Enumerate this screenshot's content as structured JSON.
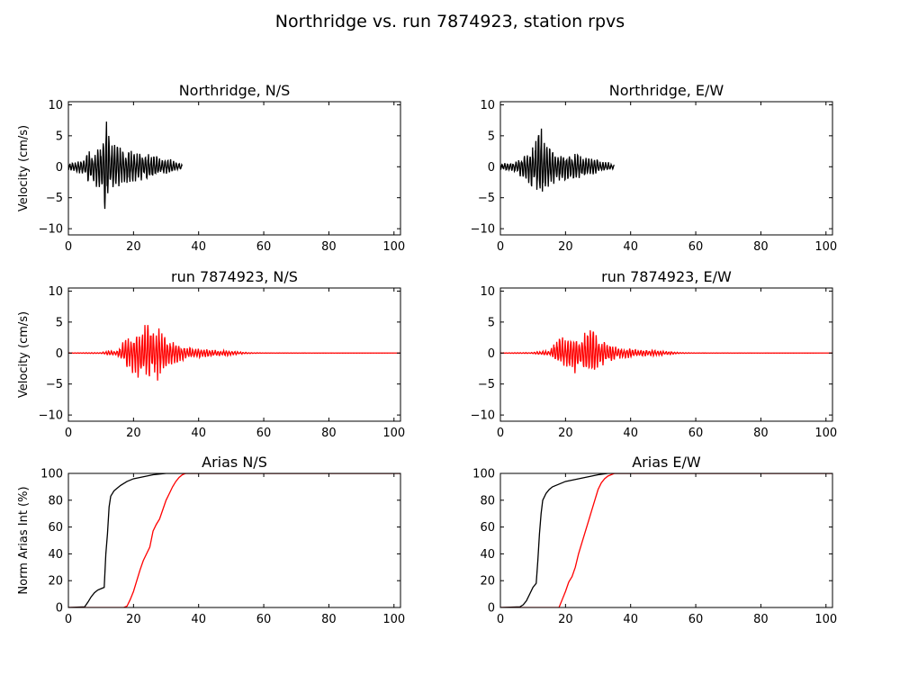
{
  "figure": {
    "title": "Northridge vs. run 7874923, station rpvs"
  },
  "colors": {
    "recorded": "#000000",
    "simulated": "#ff0000",
    "axis": "#000000"
  },
  "chart_data": [
    {
      "id": "vel-ns-recorded",
      "type": "line",
      "title": "Northridge, N/S",
      "xlabel": "",
      "ylabel": "Velocity (cm/s)",
      "xlim": [
        0,
        102
      ],
      "ylim": [
        -11,
        10.5
      ],
      "xticks": [
        "0",
        "20",
        "40",
        "60",
        "80",
        "100"
      ],
      "yticks": [
        "10",
        "5",
        "0",
        "−5",
        "−10"
      ],
      "series": [
        {
          "color": "#000000",
          "x": [],
          "y": [],
          "envelope": [
            [
              0,
              0.6
            ],
            [
              5,
              1.2
            ],
            [
              6,
              3.5
            ],
            [
              8,
              2.5
            ],
            [
              9,
              3.2
            ],
            [
              10,
              4.0
            ],
            [
              11,
              9.8
            ],
            [
              12,
              8.5
            ],
            [
              13,
              5.4
            ],
            [
              15,
              4.0
            ],
            [
              17,
              3.4
            ],
            [
              19,
              3.0
            ],
            [
              21,
              2.8
            ],
            [
              24,
              2.5
            ],
            [
              27,
              2.0
            ],
            [
              30,
              1.5
            ],
            [
              33,
              1.0
            ],
            [
              35,
              0.4
            ]
          ],
          "envelope_neg": [
            [
              0,
              -0.6
            ],
            [
              5,
              -1.5
            ],
            [
              6,
              -3.0
            ],
            [
              8,
              -3.2
            ],
            [
              10,
              -4.5
            ],
            [
              11,
              -7.5
            ],
            [
              12,
              -8.0
            ],
            [
              13,
              -4.6
            ],
            [
              15,
              -4.0
            ],
            [
              17,
              -3.2
            ],
            [
              19,
              -3.0
            ],
            [
              21,
              -2.6
            ],
            [
              24,
              -2.5
            ],
            [
              27,
              -1.8
            ],
            [
              30,
              -1.3
            ],
            [
              33,
              -0.8
            ],
            [
              35,
              -0.3
            ]
          ],
          "t_start": 0,
          "t_end": 35,
          "seed": 11
        }
      ]
    },
    {
      "id": "vel-ew-recorded",
      "type": "line",
      "title": "Northridge, E/W",
      "xlabel": "",
      "ylabel": "",
      "xlim": [
        0,
        102
      ],
      "ylim": [
        -11,
        10.5
      ],
      "xticks": [
        "0",
        "20",
        "40",
        "60",
        "80",
        "100"
      ],
      "yticks": [
        "10",
        "5",
        "0",
        "−5",
        "−10"
      ],
      "series": [
        {
          "color": "#000000",
          "x": [],
          "y": [],
          "envelope": [
            [
              0,
              0.5
            ],
            [
              5,
              1.0
            ],
            [
              7,
              2.0
            ],
            [
              9,
              2.5
            ],
            [
              11,
              5.5
            ],
            [
              12,
              9.0
            ],
            [
              13,
              5.5
            ],
            [
              15,
              4.0
            ],
            [
              17,
              3.5
            ],
            [
              20,
              2.5
            ],
            [
              23,
              2.2
            ],
            [
              26,
              1.8
            ],
            [
              29,
              1.5
            ],
            [
              32,
              1.0
            ],
            [
              35,
              0.4
            ]
          ],
          "envelope_neg": [
            [
              0,
              -0.5
            ],
            [
              5,
              -1.0
            ],
            [
              7,
              -2.2
            ],
            [
              9,
              -3.0
            ],
            [
              11,
              -4.5
            ],
            [
              12,
              -5.0
            ],
            [
              13,
              -5.2
            ],
            [
              15,
              -4.0
            ],
            [
              17,
              -3.2
            ],
            [
              20,
              -2.5
            ],
            [
              23,
              -2.2
            ],
            [
              26,
              -1.8
            ],
            [
              29,
              -1.3
            ],
            [
              32,
              -0.8
            ],
            [
              35,
              -0.3
            ]
          ],
          "t_start": 0,
          "t_end": 35,
          "seed": 23
        }
      ]
    },
    {
      "id": "vel-ns-simulated",
      "type": "line",
      "title": "run 7874923, N/S",
      "xlabel": "",
      "ylabel": "Velocity (cm/s)",
      "xlim": [
        0,
        102
      ],
      "ylim": [
        -11,
        10.5
      ],
      "xticks": [
        "0",
        "20",
        "40",
        "60",
        "80",
        "100"
      ],
      "yticks": [
        "10",
        "5",
        "0",
        "−5",
        "−10"
      ],
      "series": [
        {
          "color": "#ff0000",
          "x": [],
          "y": [],
          "envelope": [
            [
              0,
              0.02
            ],
            [
              10,
              0.1
            ],
            [
              12,
              0.4
            ],
            [
              15,
              0.5
            ],
            [
              18,
              3.2
            ],
            [
              20,
              2.5
            ],
            [
              22,
              4.0
            ],
            [
              24,
              5.7
            ],
            [
              26,
              4.5
            ],
            [
              28,
              4.8
            ],
            [
              30,
              3.0
            ],
            [
              32,
              2.0
            ],
            [
              34,
              1.5
            ],
            [
              36,
              1.0
            ],
            [
              40,
              0.8
            ],
            [
              44,
              0.6
            ],
            [
              48,
              0.5
            ],
            [
              52,
              0.3
            ],
            [
              55,
              0.1
            ],
            [
              60,
              0.02
            ],
            [
              102,
              0.0
            ]
          ],
          "envelope_neg": [
            [
              0,
              -0.02
            ],
            [
              10,
              -0.1
            ],
            [
              12,
              -0.3
            ],
            [
              15,
              -0.4
            ],
            [
              18,
              -2.5
            ],
            [
              20,
              -4.0
            ],
            [
              22,
              -4.5
            ],
            [
              24,
              -4.3
            ],
            [
              26,
              -4.0
            ],
            [
              28,
              -5.0
            ],
            [
              30,
              -3.0
            ],
            [
              32,
              -2.0
            ],
            [
              34,
              -1.5
            ],
            [
              36,
              -1.0
            ],
            [
              40,
              -0.8
            ],
            [
              44,
              -0.6
            ],
            [
              48,
              -0.5
            ],
            [
              52,
              -0.3
            ],
            [
              55,
              -0.1
            ],
            [
              60,
              -0.02
            ],
            [
              102,
              0.0
            ]
          ],
          "t_start": 0,
          "t_end": 102,
          "seed": 37
        }
      ]
    },
    {
      "id": "vel-ew-simulated",
      "type": "line",
      "title": "run 7874923, E/W",
      "xlabel": "",
      "ylabel": "",
      "xlim": [
        0,
        102
      ],
      "ylim": [
        -11,
        10.5
      ],
      "xticks": [
        "0",
        "20",
        "40",
        "60",
        "80",
        "100"
      ],
      "yticks": [
        "10",
        "5",
        "0",
        "−5",
        "−10"
      ],
      "series": [
        {
          "color": "#ff0000",
          "x": [],
          "y": [],
          "envelope": [
            [
              0,
              0.02
            ],
            [
              10,
              0.1
            ],
            [
              12,
              0.3
            ],
            [
              15,
              0.4
            ],
            [
              18,
              3.3
            ],
            [
              20,
              2.5
            ],
            [
              22,
              3.0
            ],
            [
              24,
              3.0
            ],
            [
              26,
              3.5
            ],
            [
              28,
              4.7
            ],
            [
              30,
              2.5
            ],
            [
              32,
              2.0
            ],
            [
              34,
              1.5
            ],
            [
              36,
              1.0
            ],
            [
              40,
              0.7
            ],
            [
              44,
              0.6
            ],
            [
              48,
              0.5
            ],
            [
              52,
              0.3
            ],
            [
              55,
              0.1
            ],
            [
              60,
              0.02
            ],
            [
              102,
              0.0
            ]
          ],
          "envelope_neg": [
            [
              0,
              -0.02
            ],
            [
              10,
              -0.1
            ],
            [
              12,
              -0.3
            ],
            [
              15,
              -0.4
            ],
            [
              18,
              -2.0
            ],
            [
              20,
              -2.5
            ],
            [
              22,
              -3.0
            ],
            [
              23,
              -5.4
            ],
            [
              25,
              -3.0
            ],
            [
              28,
              -3.5
            ],
            [
              30,
              -2.5
            ],
            [
              32,
              -2.0
            ],
            [
              34,
              -1.5
            ],
            [
              36,
              -1.0
            ],
            [
              40,
              -0.8
            ],
            [
              44,
              -0.6
            ],
            [
              48,
              -0.5
            ],
            [
              52,
              -0.3
            ],
            [
              55,
              -0.1
            ],
            [
              60,
              -0.02
            ],
            [
              102,
              0.0
            ]
          ],
          "t_start": 0,
          "t_end": 102,
          "seed": 51
        }
      ]
    },
    {
      "id": "arias-ns",
      "type": "line",
      "title": "Arias N/S",
      "xlabel": "",
      "ylabel": "Norm Arias Int (%)",
      "xlim": [
        0,
        102
      ],
      "ylim": [
        0,
        100
      ],
      "xticks": [
        "0",
        "20",
        "40",
        "60",
        "80",
        "100"
      ],
      "yticks": [
        "100",
        "80",
        "60",
        "40",
        "20",
        "0"
      ],
      "series": [
        {
          "color": "#000000",
          "x": [
            0,
            5,
            6,
            7,
            8,
            9,
            10,
            11,
            11.5,
            12,
            12.5,
            13,
            14,
            15,
            16,
            18,
            20,
            22,
            24,
            26,
            28,
            30,
            102
          ],
          "y": [
            0,
            0.5,
            4,
            8,
            11,
            13,
            14,
            15,
            40,
            55,
            75,
            83,
            87,
            89,
            91,
            94,
            96,
            97,
            98,
            99,
            99.5,
            100,
            100
          ]
        },
        {
          "color": "#ff0000",
          "x": [
            0,
            17,
            18,
            19,
            20,
            21,
            22,
            23,
            24,
            25,
            26,
            27,
            28,
            29,
            30,
            31,
            32,
            33,
            34,
            35,
            36,
            102
          ],
          "y": [
            0,
            0,
            1,
            6,
            12,
            20,
            28,
            35,
            40,
            45,
            57,
            62,
            66,
            73,
            80,
            85,
            90,
            94,
            97,
            99,
            100,
            100
          ]
        }
      ]
    },
    {
      "id": "arias-ew",
      "type": "line",
      "title": "Arias E/W",
      "xlabel": "",
      "ylabel": "",
      "xlim": [
        0,
        102
      ],
      "ylim": [
        0,
        100
      ],
      "xticks": [
        "0",
        "20",
        "40",
        "60",
        "80",
        "100"
      ],
      "yticks": [
        "100",
        "80",
        "60",
        "40",
        "20",
        "0"
      ],
      "series": [
        {
          "color": "#000000",
          "x": [
            0,
            6,
            7,
            8,
            9,
            10,
            11,
            11.5,
            12,
            12.5,
            13,
            14,
            15,
            16,
            18,
            20,
            22,
            24,
            26,
            28,
            30,
            33,
            102
          ],
          "y": [
            0,
            0.5,
            2,
            5,
            10,
            15,
            18,
            35,
            55,
            70,
            80,
            85,
            88,
            90,
            92,
            94,
            95,
            96,
            97,
            98,
            99,
            100,
            100
          ]
        },
        {
          "color": "#ff0000",
          "x": [
            0,
            18,
            19,
            20,
            21,
            22,
            23,
            24,
            25,
            26,
            27,
            28,
            29,
            30,
            31,
            32,
            33,
            34,
            35,
            36,
            102
          ],
          "y": [
            0,
            0,
            6,
            12,
            19,
            23,
            30,
            40,
            48,
            56,
            64,
            72,
            80,
            88,
            93,
            96,
            98,
            99,
            100,
            100,
            100
          ]
        }
      ]
    }
  ]
}
